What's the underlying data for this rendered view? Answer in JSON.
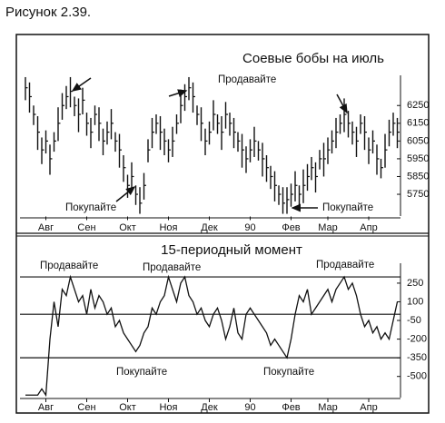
{
  "caption": "Рисунок 2.39.",
  "chart_data": [
    {
      "type": "ohlc",
      "title": "Соевые бобы на июль",
      "categories": [
        null,
        null,
        null,
        null,
        null,
        "Авг",
        null,
        null,
        null,
        null,
        null,
        null,
        null,
        null,
        null,
        "Сен",
        null,
        null,
        null,
        null,
        null,
        null,
        null,
        null,
        null,
        "Окт",
        null,
        null,
        null,
        null,
        null,
        null,
        null,
        null,
        null,
        "Ноя",
        null,
        null,
        null,
        null,
        null,
        null,
        null,
        null,
        null,
        "Дек",
        null,
        null,
        null,
        null,
        null,
        null,
        null,
        null,
        null,
        "90",
        null,
        null,
        null,
        null,
        null,
        null,
        null,
        null,
        null,
        "Фев",
        null,
        null,
        null,
        null,
        null,
        null,
        null,
        null,
        "Мар",
        null,
        null,
        null,
        null,
        null,
        null,
        null,
        null,
        null,
        "Апр",
        null,
        null,
        null,
        null,
        null,
        null,
        null
      ],
      "high": [
        6410,
        6380,
        6250,
        6190,
        6070,
        6110,
        6030,
        6100,
        6240,
        6320,
        6360,
        6410,
        6300,
        6290,
        6350,
        6210,
        6180,
        6250,
        6240,
        6120,
        6160,
        6230,
        6100,
        6090,
        5970,
        5860,
        5930,
        5800,
        5790,
        5870,
        6060,
        6180,
        6200,
        6190,
        6120,
        6060,
        6130,
        6200,
        6340,
        6370,
        6410,
        6380,
        6250,
        6240,
        6120,
        6160,
        6280,
        6200,
        6190,
        6270,
        6210,
        6180,
        6100,
        6090,
        6020,
        6060,
        6130,
        6050,
        6040,
        5970,
        5910,
        5880,
        5800,
        5790,
        5790,
        5810,
        5880,
        5800,
        5890,
        5920,
        5960,
        5930,
        6000,
        6040,
        6070,
        6110,
        6180,
        6200,
        6290,
        6220,
        6160,
        6130,
        6200,
        6190,
        6070,
        6110,
        6030,
        5950,
        6090,
        6170,
        6210,
        6180
      ],
      "low": [
        6280,
        6210,
        6140,
        6000,
        5920,
        5980,
        5860,
        5990,
        6050,
        6170,
        6230,
        6240,
        6190,
        6100,
        6200,
        6080,
        6010,
        6140,
        6050,
        5970,
        6030,
        6060,
        5990,
        5900,
        5820,
        5730,
        5760,
        5690,
        5640,
        5720,
        5930,
        6010,
        6090,
        6000,
        5970,
        5930,
        5960,
        6090,
        6150,
        6220,
        6280,
        6210,
        6140,
        6050,
        5970,
        6030,
        6110,
        6090,
        6000,
        6120,
        6080,
        6010,
        5990,
        5900,
        5870,
        5930,
        5960,
        5940,
        5850,
        5820,
        5780,
        5710,
        5690,
        5640,
        5640,
        5680,
        5710,
        5690,
        5700,
        5770,
        5830,
        5760,
        5890,
        5850,
        5920,
        5980,
        6010,
        6090,
        6100,
        6070,
        6030,
        5960,
        6090,
        6000,
        5920,
        5980,
        5860,
        5840,
        5900,
        6020,
        6080,
        6010
      ],
      "close": [
        6350,
        6300,
        6200,
        6100,
        6000,
        6050,
        5950,
        6050,
        6150,
        6250,
        6300,
        6330,
        6250,
        6200,
        6280,
        6150,
        6100,
        6200,
        6150,
        6050,
        6100,
        6150,
        6050,
        6000,
        5900,
        5800,
        5850,
        5750,
        5700,
        5800,
        6000,
        6100,
        6150,
        6100,
        6050,
        6000,
        6050,
        6150,
        6250,
        6300,
        6350,
        6300,
        6200,
        6150,
        6050,
        6100,
        6200,
        6150,
        6100,
        6200,
        6150,
        6100,
        6050,
        6000,
        5950,
        6000,
        6050,
        6000,
        5950,
        5900,
        5850,
        5800,
        5750,
        5700,
        5720,
        5750,
        5800,
        5750,
        5800,
        5850,
        5900,
        5850,
        5950,
        5950,
        6000,
        6050,
        6100,
        6150,
        6200,
        6150,
        6100,
        6050,
        6150,
        6100,
        6000,
        6050,
        5950,
        5900,
        6000,
        6100,
        6150,
        6100
      ],
      "color": "#111111",
      "ylim": [
        5630,
        6420
      ],
      "yticks": [
        5750,
        5850,
        5950,
        6050,
        6150,
        6250
      ],
      "annotations": [
        "Продавайте",
        "Покупайте",
        "Покупайте"
      ]
    },
    {
      "type": "line",
      "title": "15-периодный момент",
      "categories": [
        null,
        null,
        null,
        null,
        null,
        "Авг",
        null,
        null,
        null,
        null,
        null,
        null,
        null,
        null,
        null,
        "Сен",
        null,
        null,
        null,
        null,
        null,
        null,
        null,
        null,
        null,
        "Окт",
        null,
        null,
        null,
        null,
        null,
        null,
        null,
        null,
        null,
        "Ноя",
        null,
        null,
        null,
        null,
        null,
        null,
        null,
        null,
        null,
        "Дек",
        null,
        null,
        null,
        null,
        null,
        null,
        null,
        null,
        null,
        "90",
        null,
        null,
        null,
        null,
        null,
        null,
        null,
        null,
        null,
        "Фев",
        null,
        null,
        null,
        null,
        null,
        null,
        null,
        null,
        "Мар",
        null,
        null,
        null,
        null,
        null,
        null,
        null,
        null,
        null,
        "Апр",
        null,
        null,
        null,
        null,
        null,
        null,
        null
      ],
      "values": [
        -650,
        -650,
        -650,
        -650,
        -600,
        -650,
        -200,
        100,
        -100,
        200,
        150,
        300,
        200,
        100,
        150,
        0,
        200,
        50,
        150,
        100,
        0,
        50,
        -100,
        -50,
        -150,
        -200,
        -250,
        -300,
        -250,
        -150,
        -100,
        50,
        0,
        100,
        150,
        300,
        200,
        100,
        250,
        300,
        150,
        100,
        0,
        50,
        -50,
        -100,
        0,
        50,
        -50,
        -200,
        -100,
        50,
        -150,
        -200,
        0,
        50,
        0,
        -50,
        -100,
        -150,
        -250,
        -200,
        -250,
        -300,
        -350,
        -200,
        0,
        150,
        100,
        200,
        0,
        50,
        100,
        150,
        200,
        100,
        200,
        250,
        300,
        200,
        250,
        150,
        0,
        -100,
        -50,
        -150,
        -100,
        -200,
        -150,
        -200,
        -50,
        100
      ],
      "color": "#111111",
      "ylim": [
        -670,
        410
      ],
      "yticks": [
        250,
        100,
        -50,
        -200,
        -350,
        -500
      ],
      "hlines": [
        300,
        0,
        -350
      ],
      "annotations": [
        "Продавайте",
        "Продавайте",
        "Продавайте",
        "Покупайте",
        "Покупайте"
      ]
    }
  ]
}
